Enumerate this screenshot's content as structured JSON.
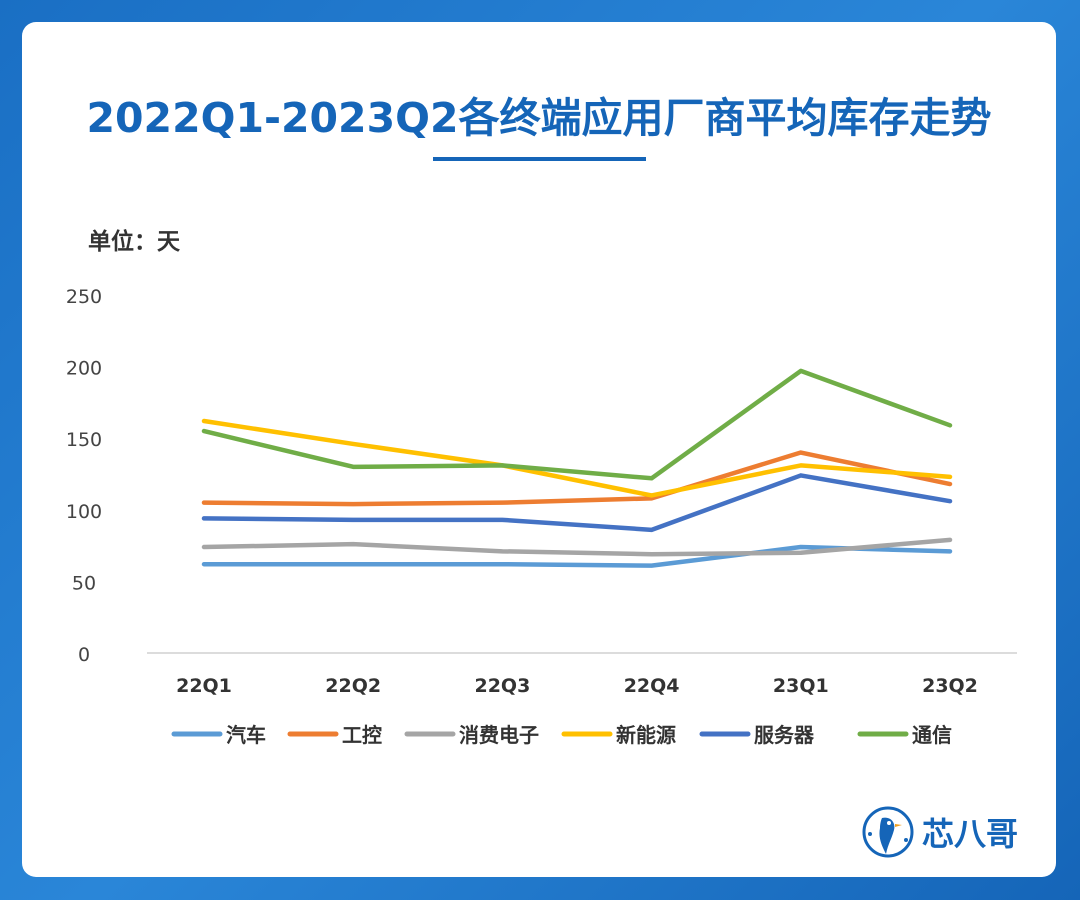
{
  "title": "2022Q1-2023Q2各终端应用厂商平均库存走势",
  "unit_label": "单位：天",
  "brand": {
    "name": "芯八哥",
    "logo_icon": "bird-logo-icon"
  },
  "colors": {
    "background": "#1a6fc4",
    "title": "#1565b8",
    "axis": "#d0d0d0"
  },
  "chart_data": {
    "type": "line",
    "categories": [
      "22Q1",
      "22Q2",
      "22Q3",
      "22Q4",
      "23Q1",
      "23Q2"
    ],
    "ylim": [
      0,
      250
    ],
    "yticks": [
      0,
      50,
      100,
      150,
      200,
      250
    ],
    "grid": false,
    "legend_position": "bottom",
    "series": [
      {
        "name": "汽车",
        "color": "#5b9bd5",
        "values": [
          62,
          62,
          62,
          61,
          74,
          71
        ]
      },
      {
        "name": "工控",
        "color": "#ed7d31",
        "values": [
          105,
          104,
          105,
          108,
          140,
          118
        ]
      },
      {
        "name": "消费电子",
        "color": "#a5a5a5",
        "values": [
          74,
          76,
          71,
          69,
          70,
          79
        ]
      },
      {
        "name": "新能源",
        "color": "#ffc000",
        "values": [
          162,
          146,
          131,
          110,
          131,
          123
        ]
      },
      {
        "name": "服务器",
        "color": "#4472c4",
        "values": [
          94,
          93,
          93,
          86,
          124,
          106
        ]
      },
      {
        "name": "通信",
        "color": "#70ad47",
        "values": [
          155,
          130,
          131,
          122,
          197,
          159
        ]
      }
    ]
  }
}
